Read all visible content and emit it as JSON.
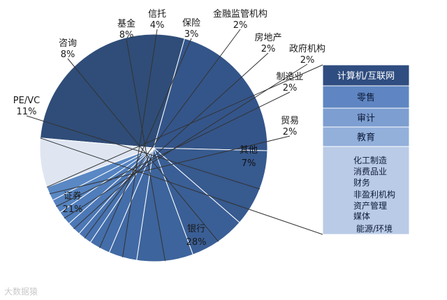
{
  "chart_data": {
    "type": "pie",
    "slices": [
      {
        "label": "银行",
        "pct_label": "28%",
        "value": 28,
        "color": "#2f4d78",
        "label_pos": "inside"
      },
      {
        "label": "证券",
        "pct_label": "21%",
        "value": 21,
        "color": "#34558a",
        "label_pos": "inside"
      },
      {
        "label": "PE/VC",
        "pct_label": "11%",
        "value": 11,
        "color": "#375a8f",
        "label_pos": "outside"
      },
      {
        "label": "咨询",
        "pct_label": "8%",
        "value": 8,
        "color": "#3a5f96",
        "label_pos": "outside"
      },
      {
        "label": "基金",
        "pct_label": "8%",
        "value": 8,
        "color": "#3d649c",
        "label_pos": "outside"
      },
      {
        "label": "信托",
        "pct_label": "4%",
        "value": 4,
        "color": "#4169a4",
        "label_pos": "outside"
      },
      {
        "label": "保险",
        "pct_label": "3%",
        "value": 3,
        "color": "#446eaa",
        "label_pos": "outside"
      },
      {
        "label": "金融监管机构",
        "pct_label": "2%",
        "value": 2,
        "color": "#4873b0",
        "label_pos": "outside"
      },
      {
        "label": "房地产",
        "pct_label": "2%",
        "value": 2,
        "color": "#4c78b6",
        "label_pos": "outside"
      },
      {
        "label": "政府机构",
        "pct_label": "2%",
        "value": 2,
        "color": "#507dbb",
        "label_pos": "outside"
      },
      {
        "label": "制造业",
        "pct_label": "2%",
        "value": 2,
        "color": "#5583c0",
        "label_pos": "outside"
      },
      {
        "label": "贸易",
        "pct_label": "2%",
        "value": 2,
        "color": "#5a88c4",
        "label_pos": "outside"
      },
      {
        "label": "其他",
        "pct_label": "7%",
        "value": 7,
        "color": "#dfe6f2",
        "label_pos": "inside-light"
      }
    ],
    "breakdown_of": "其他",
    "breakdown_items": [
      "计算机/互联网",
      "零售",
      "审计",
      "教育",
      "化工制造",
      "消费品业",
      "财务",
      "非盈利机构",
      "资产管理",
      "媒体",
      "能源/环境"
    ]
  },
  "watermark": "大数据猿"
}
